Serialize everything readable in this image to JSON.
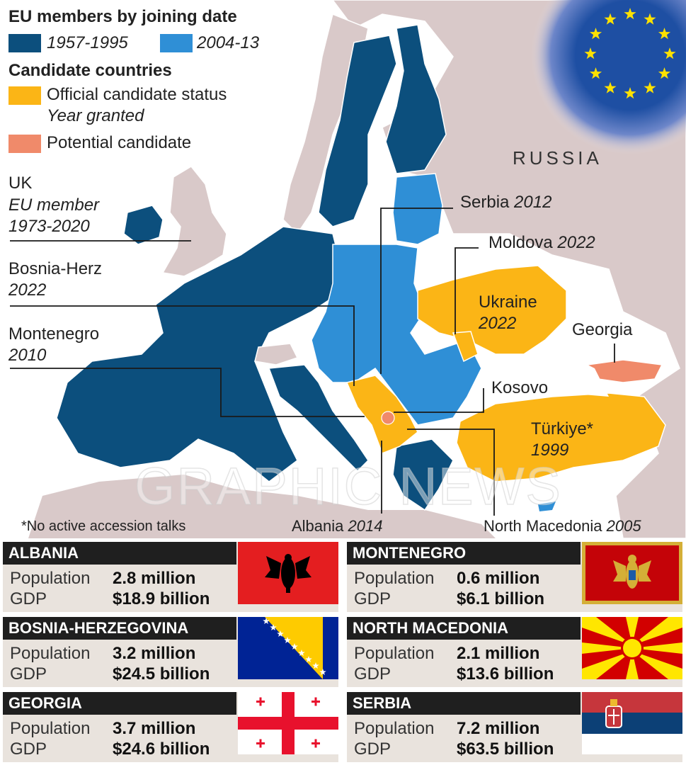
{
  "legend": {
    "members_title": "EU members by joining date",
    "range_1": "1957-1995",
    "range_2": "2004-13",
    "candidates_title": "Candidate countries",
    "official": "Official candidate status",
    "year_granted": "Year granted",
    "potential": "Potential candidate",
    "colors": {
      "dark_blue": "#0c4f7d",
      "light_blue": "#2f8fd6",
      "candidate": "#fbb516",
      "potential": "#f08a6a",
      "non_eu": "#d9c9c9"
    }
  },
  "map_labels": {
    "russia": "RUSSIA",
    "uk_name": "UK",
    "uk_note_1": "EU member",
    "uk_note_2": "1973-2020",
    "bosnia_name": "Bosnia-Herz",
    "bosnia_year": "2022",
    "montenegro_name": "Montenegro",
    "montenegro_year": "2010",
    "serbia_name": "Serbia",
    "serbia_year": "2012",
    "moldova_name": "Moldova",
    "moldova_year": "2022",
    "ukraine_name": "Ukraine",
    "ukraine_year": "2022",
    "georgia_name": "Georgia",
    "kosovo_name": "Kosovo",
    "turkiye_name": "Türkiye*",
    "turkiye_year": "1999",
    "albania_name": "Albania",
    "albania_year": "2014",
    "north_macedonia_name": "North Macedonia",
    "north_macedonia_year": "2005",
    "footnote": "*No active accession talks",
    "watermark": "GRAPHIC NEWS"
  },
  "fact_labels": {
    "population": "Population",
    "gdp": "GDP"
  },
  "countries": [
    {
      "name": "ALBANIA",
      "population": "2.8 million",
      "gdp": "$18.9 billion",
      "flag": "albania-flag"
    },
    {
      "name": "MONTENEGRO",
      "population": "0.6 million",
      "gdp": "$6.1 billion",
      "flag": "montenegro-flag"
    },
    {
      "name": "BOSNIA-HERZEGOVINA",
      "population": "3.2 million",
      "gdp": "$24.5 billion",
      "flag": "bosnia-flag"
    },
    {
      "name": "NORTH MACEDONIA",
      "population": "2.1 million",
      "gdp": "$13.6 billion",
      "flag": "north-macedonia-flag"
    },
    {
      "name": "GEORGIA",
      "population": "3.7 million",
      "gdp": "$24.6 billion",
      "flag": "georgia-flag"
    },
    {
      "name": "SERBIA",
      "population": "7.2 million",
      "gdp": "$63.5 billion",
      "flag": "serbia-flag"
    }
  ]
}
